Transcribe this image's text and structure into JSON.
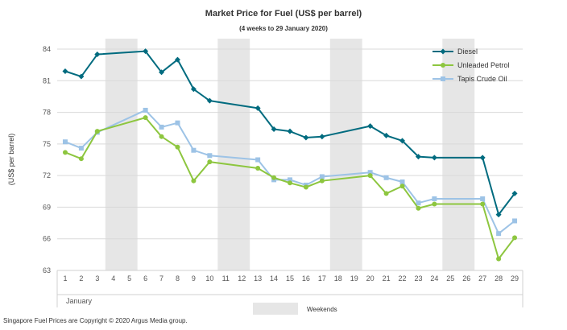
{
  "chart_data": {
    "type": "line",
    "title": "Market Price for Fuel  (US$  per barrel)",
    "subtitle": "(4 weeks to 29 January 2020)",
    "ylabel": "(US$ per barrel)",
    "xlabel": "January",
    "ylim": [
      63,
      84
    ],
    "yticks": [
      "63",
      "66",
      "69",
      "72",
      "75",
      "78",
      "81",
      "84"
    ],
    "categories": [
      "1",
      "2",
      "3",
      "4",
      "5",
      "6",
      "7",
      "8",
      "9",
      "10",
      "11",
      "12",
      "13",
      "14",
      "15",
      "16",
      "17",
      "18",
      "19",
      "20",
      "21",
      "22",
      "23",
      "24",
      "25",
      "26",
      "27",
      "28",
      "29"
    ],
    "weekend_ranges": [
      [
        4,
        5
      ],
      [
        11,
        12
      ],
      [
        18,
        19
      ],
      [
        25,
        26
      ]
    ],
    "weekend_label": "Weekends",
    "legend_position": "top-right",
    "series": [
      {
        "name": "Diesel",
        "color": "#006B7F",
        "marker": "diamond",
        "x": [
          1,
          2,
          3,
          6,
          7,
          8,
          9,
          10,
          13,
          14,
          15,
          16,
          17,
          20,
          21,
          22,
          23,
          24,
          27,
          28,
          29
        ],
        "values": [
          81.9,
          81.4,
          83.5,
          83.8,
          81.8,
          83.0,
          80.2,
          79.1,
          78.4,
          76.4,
          76.2,
          75.6,
          75.7,
          76.7,
          75.8,
          75.3,
          73.8,
          73.7,
          73.7,
          68.3,
          70.3
        ]
      },
      {
        "name": "Unleaded Petrol",
        "color": "#8DC63F",
        "marker": "circle",
        "x": [
          1,
          2,
          3,
          6,
          7,
          8,
          9,
          10,
          13,
          14,
          15,
          16,
          17,
          20,
          21,
          22,
          23,
          24,
          27,
          28,
          29
        ],
        "values": [
          74.2,
          73.6,
          76.2,
          77.5,
          75.7,
          74.7,
          71.5,
          73.3,
          72.7,
          71.8,
          71.3,
          70.9,
          71.5,
          72.0,
          70.3,
          71.0,
          68.9,
          69.3,
          69.3,
          64.1,
          66.1
        ]
      },
      {
        "name": "Tapis Crude Oil",
        "color": "#9DC3E6",
        "marker": "square",
        "x": [
          1,
          2,
          3,
          6,
          7,
          8,
          9,
          10,
          13,
          14,
          15,
          16,
          17,
          20,
          21,
          22,
          23,
          24,
          27,
          28,
          29
        ],
        "values": [
          75.2,
          74.6,
          76.1,
          78.2,
          76.6,
          77.0,
          74.4,
          73.9,
          73.5,
          71.6,
          71.6,
          71.1,
          71.9,
          72.3,
          71.8,
          71.4,
          69.4,
          69.8,
          69.8,
          66.5,
          67.7
        ]
      }
    ]
  },
  "footer": {
    "copyright": "Singapore  Fuel Prices are Copyright © 2020  Argus Media group."
  }
}
